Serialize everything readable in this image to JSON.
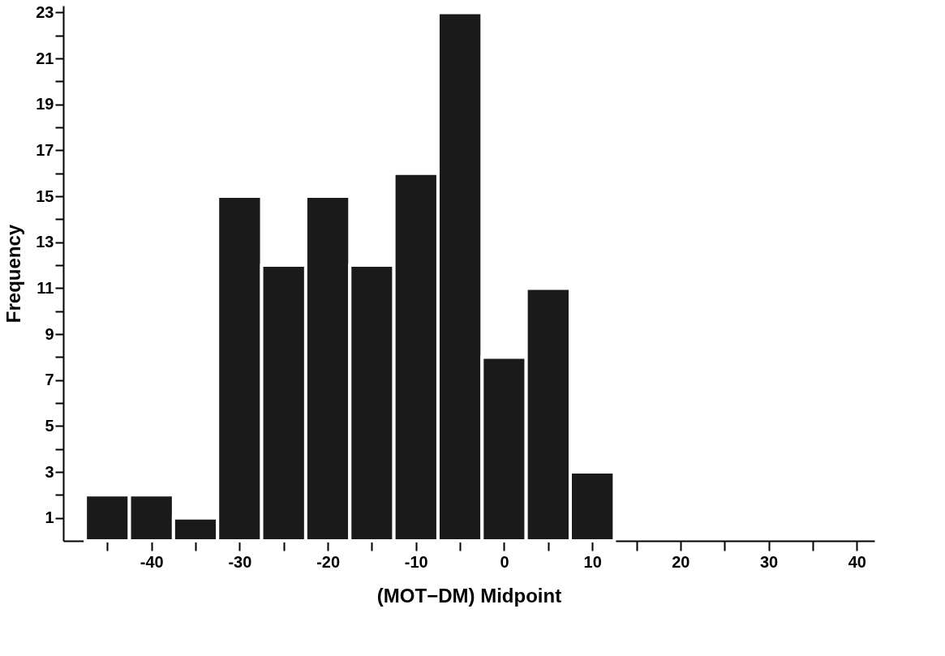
{
  "chart_data": {
    "type": "histogram",
    "xlabel": "(MOT−DM) Midpoint",
    "ylabel": "Frequency",
    "bins": [
      -47.5,
      -42.5,
      -37.5,
      -32.5,
      -27.5,
      -22.5,
      -17.5,
      -12.5,
      -7.5,
      -2.5,
      2.5,
      7.5,
      12.5
    ],
    "values": [
      2,
      2,
      1,
      15,
      12,
      15,
      12,
      16,
      23,
      8,
      11,
      3
    ],
    "color": "#1a1a1a",
    "xlim": [
      -50,
      42
    ],
    "xticks": [
      {
        "value": -45,
        "label": null
      },
      -40,
      {
        "value": -35,
        "label": null
      },
      -30,
      {
        "value": -25,
        "label": null
      },
      -20,
      {
        "value": -15,
        "label": null
      },
      -10,
      {
        "value": -5,
        "label": null
      },
      0,
      {
        "value": 5,
        "label": null
      },
      10,
      {
        "value": 15,
        "label": null
      },
      20,
      {
        "value": 25,
        "label": null
      },
      30,
      {
        "value": 35,
        "label": null
      },
      40
    ],
    "ylim": [
      0,
      23.3
    ],
    "yticks": [
      1,
      {
        "value": 2,
        "label": null
      },
      3,
      {
        "value": 4,
        "label": null
      },
      5,
      {
        "value": 6,
        "label": null
      },
      7,
      {
        "value": 8,
        "label": null
      },
      9,
      {
        "value": 10,
        "label": null
      },
      11,
      {
        "value": 12,
        "label": null
      },
      13,
      {
        "value": 14,
        "label": null
      },
      15,
      {
        "value": 16,
        "label": null
      },
      17,
      {
        "value": 18,
        "label": null
      },
      19,
      {
        "value": 20,
        "label": null
      },
      21,
      {
        "value": 22,
        "label": null
      },
      23
    ],
    "grid": false
  }
}
